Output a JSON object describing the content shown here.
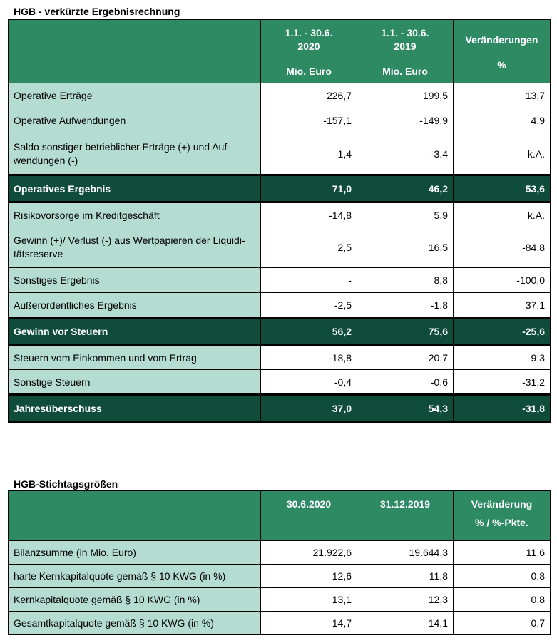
{
  "income": {
    "title": "HGB - verkürzte Ergebnisrechnung",
    "headers": [
      {
        "period": "1.1. - 30.6.",
        "year": "2020",
        "unit": "Mio. Euro"
      },
      {
        "period": "1.1. - 30.6.",
        "year": "2019",
        "unit": "Mio. Euro"
      },
      {
        "period": "Veränderungen",
        "year": "",
        "unit": "%"
      }
    ],
    "rows": [
      {
        "label": "Operative Erträge",
        "v2020": "226,7",
        "v2019": "199,5",
        "change": "13,7"
      },
      {
        "label": "Operative Aufwendungen",
        "v2020": "-157,1",
        "v2019": "-149,9",
        "change": "4,9"
      },
      {
        "label": "Saldo sonstiger betrieblicher Erträge (+) und Auf-wendungen (-)",
        "v2020": "1,4",
        "v2019": "-3,4",
        "change": "k.A."
      },
      {
        "label": "Operatives Ergebnis",
        "v2020": "71,0",
        "v2019": "46,2",
        "change": "53,6"
      },
      {
        "label": "Risikovorsorge im Kreditgeschäft",
        "v2020": "-14,8",
        "v2019": "5,9",
        "change": "k.A."
      },
      {
        "label": "Gewinn (+)/ Verlust (-) aus Wertpapieren der Liquidi-tätsreserve",
        "v2020": "2,5",
        "v2019": "16,5",
        "change": "-84,8"
      },
      {
        "label": "Sonstiges Ergebnis",
        "v2020": "-",
        "v2019": "8,8",
        "change": "-100,0"
      },
      {
        "label": "Außerordentliches Ergebnis",
        "v2020": "-2,5",
        "v2019": "-1,8",
        "change": "37,1"
      },
      {
        "label": "Gewinn vor Steuern",
        "v2020": "56,2",
        "v2019": "75,6",
        "change": "-25,6"
      },
      {
        "label": "Steuern vom Einkommen und vom Ertrag",
        "v2020": "-18,8",
        "v2019": "-20,7",
        "change": "-9,3"
      },
      {
        "label": "Sonstige Steuern",
        "v2020": "-0,4",
        "v2019": "-0,6",
        "change": "-31,2"
      },
      {
        "label": "Jahresüberschuss",
        "v2020": "37,0",
        "v2019": "54,3",
        "change": "-31,8"
      }
    ]
  },
  "balance": {
    "title": "HGB-Stichtagsgrößen",
    "headers": [
      {
        "line1": "30.6.2020",
        "line2": ""
      },
      {
        "line1": "31.12.2019",
        "line2": ""
      },
      {
        "line1": "Veränderung",
        "line2": "% / %-Pkte."
      }
    ],
    "rows": [
      {
        "label": "Bilanzsumme (in Mio. Euro)",
        "v1": "21.922,6",
        "v2": "19.644,3",
        "change": "11,6"
      },
      {
        "label": "harte Kernkapitalquote gemäß § 10 KWG (in %)",
        "v1": "12,6",
        "v2": "11,8",
        "change": "0,8"
      },
      {
        "label": "Kernkapitalquote gemäß § 10 KWG (in %)",
        "v1": "13,1",
        "v2": "12,3",
        "change": "0,8"
      },
      {
        "label": "Gesamtkapitalquote gemäß § 10 KWG (in %)",
        "v1": "14,7",
        "v2": "14,1",
        "change": "0,7"
      }
    ]
  }
}
